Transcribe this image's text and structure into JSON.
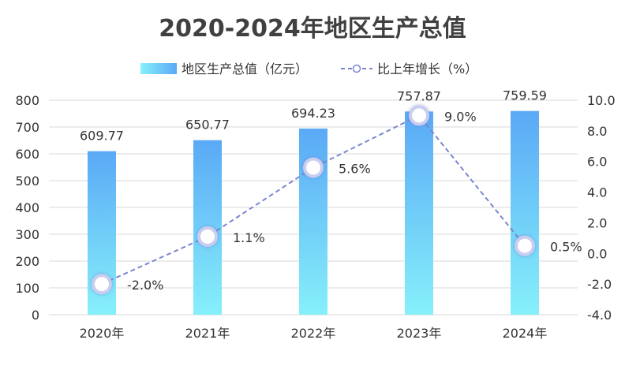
{
  "chart_data": {
    "type": "bar",
    "title": "2020-2024年地区生产总值",
    "categories": [
      "2020年",
      "2021年",
      "2022年",
      "2023年",
      "2024年"
    ],
    "series": [
      {
        "name": "地区生产总值（亿元）",
        "type": "bar",
        "axis": "left",
        "values": [
          609.77,
          650.77,
          694.23,
          757.87,
          759.59
        ],
        "labels": [
          "609.77",
          "650.77",
          "694.23",
          "757.87",
          "759.59"
        ],
        "color_top": "#5aa9f6",
        "color_bottom": "#86f0fa"
      },
      {
        "name": "比上年增长（%）",
        "type": "line",
        "axis": "right",
        "values": [
          -2.0,
          1.1,
          5.6,
          9.0,
          0.5
        ],
        "labels": [
          "-2.0%",
          "1.1%",
          "5.6%",
          "9.0%",
          "0.5%"
        ],
        "color": "#7b86cf"
      }
    ],
    "y_left": {
      "min": 0,
      "max": 800,
      "ticks": [
        "0",
        "100",
        "200",
        "300",
        "400",
        "500",
        "600",
        "700",
        "800"
      ]
    },
    "y_right": {
      "min": -4.0,
      "max": 10.0,
      "ticks": [
        "-4.0",
        "-2.0",
        "0.0",
        "2.0",
        "4.0",
        "6.0",
        "8.0",
        "10.0"
      ]
    },
    "grid": true,
    "legend_position": "top-center",
    "grid_color": "#d9d9d9"
  }
}
